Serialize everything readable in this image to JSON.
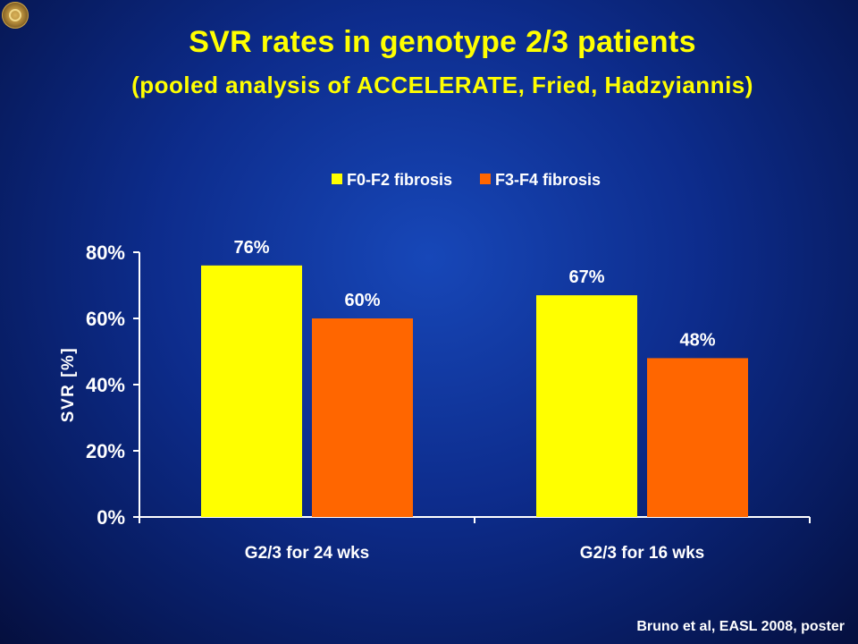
{
  "slide": {
    "title": "SVR rates in genotype 2/3 patients",
    "subtitle": "(pooled analysis of ACCELERATE, Fried, Hadzyiannis)",
    "citation": "Bruno et al, EASL 2008, poster"
  },
  "chart_data": {
    "type": "bar",
    "categories": [
      "G2/3 for 24 wks",
      "G2/3 for 16 wks"
    ],
    "series": [
      {
        "name": "F0-F2 fibrosis",
        "values": [
          76,
          67
        ],
        "labels": [
          "76%",
          "67%"
        ],
        "color": "#ffff00"
      },
      {
        "name": "F3-F4 fibrosis",
        "values": [
          60,
          48
        ],
        "labels": [
          "60%",
          "48%"
        ],
        "color": "#ff6600"
      }
    ],
    "ylabel": "SVR [%]",
    "ylim": [
      0,
      80
    ],
    "yticks": [
      0,
      20,
      40,
      60,
      80
    ],
    "ytick_labels": [
      "0%",
      "20%",
      "40%",
      "60%",
      "80%"
    ],
    "grid": false,
    "legend_position": "top"
  }
}
